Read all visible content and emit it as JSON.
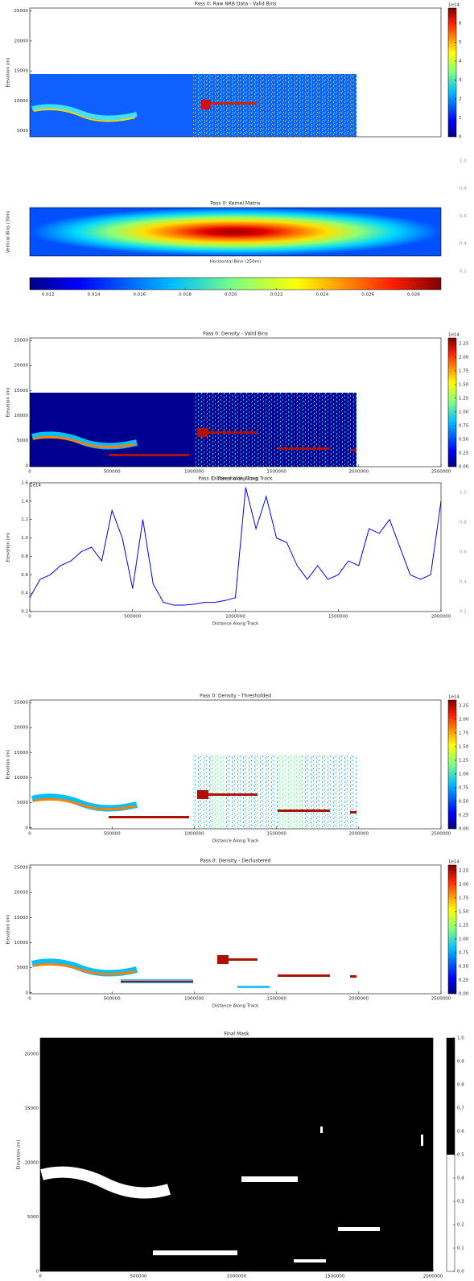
{
  "chart_data": [
    {
      "type": "heatmap",
      "title": "Pass 0: Raw NRB Data - Valid Bins",
      "ylabel": "Elevation (m)",
      "xlim": [
        0,
        2500000
      ],
      "ylim": [
        4000,
        25500
      ],
      "yticks": [
        5000,
        10000,
        15000,
        20000,
        25000
      ],
      "colorbar": {
        "orientation": "vertical",
        "colormap": "jet",
        "clim": [
          0,
          6.8
        ],
        "ticks": [
          0,
          1,
          2,
          3,
          4,
          5,
          6
        ],
        "offset_text": "1e14"
      }
    },
    {
      "type": "heatmap",
      "title": "Pass 0: Kernel Matrix",
      "ylabel": "Vertical Bins (30m)",
      "xlabel": "Horizontal Bins (250m)",
      "colorbar": {
        "orientation": "horizontal",
        "colormap": "jet",
        "clim": [
          0.0112,
          0.0292
        ],
        "ticks": [
          0.012,
          0.014,
          0.016,
          0.018,
          {
            "value": 0.02,
            "label": "0.020"
          },
          0.022,
          0.024,
          0.026,
          0.028
        ]
      },
      "side_lim": [
        0,
        1
      ],
      "side_ticks": [
        {
          "value": 1,
          "label": "1.0"
        },
        0.8,
        0.6,
        0.4,
        0.2
      ]
    },
    {
      "type": "heatmap",
      "title": "Pass 0: Density - Valid Bins",
      "ylabel": "Elevation (m)",
      "xlabel": "Distance Along Track",
      "xlim": [
        0,
        2500000
      ],
      "xticks": [
        0,
        500000,
        1000000,
        1500000,
        2000000,
        2500000
      ],
      "ylim": [
        -200,
        25500
      ],
      "yticks": [
        0,
        5000,
        10000,
        15000,
        20000,
        25000
      ],
      "colorbar": {
        "orientation": "vertical",
        "colormap": "jet",
        "clim": [
          0,
          2.35
        ],
        "offset_text": "1e14",
        "ticks": [
          {
            "value": 0,
            "label": "0.00"
          },
          0.25,
          {
            "value": 0.5,
            "label": "0.50"
          },
          0.75,
          {
            "value": 1,
            "label": "1.00"
          },
          1.25,
          {
            "value": 1.5,
            "label": "1.50"
          },
          1.75,
          {
            "value": 2,
            "label": "2.00"
          },
          2.25
        ]
      }
    },
    {
      "type": "line",
      "title": "Pass 0: Thresholds Along Track",
      "ylabel": "Elevation (m)",
      "xlabel": "Distance Along Track",
      "offset_text": "1e14",
      "color": "#0000ff",
      "xlim": [
        0,
        2000000
      ],
      "xticks": [
        0,
        500000,
        1000000,
        1500000,
        2000000
      ],
      "ylim": [
        0.2,
        1.6
      ],
      "yticks": [
        0.2,
        0.4,
        0.6,
        0.8,
        {
          "value": 1,
          "label": "1.0"
        },
        1.2,
        1.4,
        1.6
      ],
      "x": [
        0,
        50000,
        100000,
        150000,
        200000,
        250000,
        300000,
        350000,
        400000,
        450000,
        500000,
        550000,
        600000,
        650000,
        700000,
        750000,
        800000,
        850000,
        900000,
        950000,
        1000000,
        1050000,
        1100000,
        1150000,
        1200000,
        1250000,
        1300000,
        1350000,
        1400000,
        1450000,
        1500000,
        1550000,
        1600000,
        1650000,
        1700000,
        1750000,
        1800000,
        1850000,
        1900000,
        1950000,
        2000000
      ],
      "values": [
        0.35,
        0.55,
        0.6,
        0.7,
        0.75,
        0.85,
        0.9,
        0.75,
        1.3,
        1.0,
        0.45,
        1.2,
        0.5,
        0.3,
        0.27,
        0.27,
        0.28,
        0.3,
        0.3,
        0.32,
        0.35,
        1.55,
        1.1,
        1.45,
        1.0,
        0.95,
        0.7,
        0.55,
        0.7,
        0.55,
        0.6,
        0.75,
        0.7,
        1.1,
        1.05,
        1.2,
        0.9,
        0.6,
        0.55,
        0.6,
        1.4
      ],
      "side_lim": [
        0,
        1
      ],
      "side_ticks": [
        {
          "value": 1,
          "label": "1.0"
        },
        0.8,
        0.6,
        0.4,
        0.2
      ]
    },
    {
      "type": "heatmap",
      "title": "Pass 0: Density - Thresholded",
      "ylabel": "Elevation (m)",
      "xlabel": "Distance Along Track",
      "xlim": [
        0,
        2500000
      ],
      "xticks": [
        0,
        500000,
        1000000,
        1500000,
        2000000,
        2500000
      ],
      "ylim": [
        -200,
        25500
      ],
      "yticks": [
        0,
        5000,
        10000,
        15000,
        20000,
        25000
      ],
      "colorbar": {
        "orientation": "vertical",
        "colormap": "jet",
        "clim": [
          0,
          2.35
        ],
        "offset_text": "1e14",
        "ticks": [
          {
            "value": 0,
            "label": "0.00"
          },
          0.25,
          {
            "value": 0.5,
            "label": "0.50"
          },
          0.75,
          {
            "value": 1,
            "label": "1.00"
          },
          1.25,
          {
            "value": 1.5,
            "label": "1.50"
          },
          1.75,
          {
            "value": 2,
            "label": "2.00"
          },
          2.25
        ]
      }
    },
    {
      "type": "heatmap",
      "title": "Pass 0: Density - Declustered",
      "ylabel": "Elevation (m)",
      "xlabel": "Distance Along Track",
      "xlim": [
        0,
        2500000
      ],
      "xticks": [
        0,
        500000,
        1000000,
        1500000,
        2000000,
        2500000
      ],
      "ylim": [
        -200,
        25500
      ],
      "yticks": [
        0,
        5000,
        10000,
        15000,
        20000,
        25000
      ],
      "colorbar": {
        "orientation": "vertical",
        "colormap": "jet",
        "clim": [
          0,
          2.35
        ],
        "offset_text": "1e14",
        "ticks": [
          {
            "value": 0,
            "label": "0.00"
          },
          0.25,
          {
            "value": 0.5,
            "label": "0.50"
          },
          0.75,
          {
            "value": 1,
            "label": "1.00"
          },
          1.25,
          {
            "value": 1.5,
            "label": "1.50"
          },
          1.75,
          {
            "value": 2,
            "label": "2.00"
          },
          2.25
        ]
      }
    },
    {
      "type": "heatmap",
      "title": "Final Mask",
      "ylabel": "Elevation (m)",
      "xlabel": "Distance Along Track",
      "xlim": [
        0,
        2000000
      ],
      "xticks": [
        0,
        500000,
        1000000,
        1500000,
        2000000
      ],
      "ylim": [
        0,
        21500
      ],
      "yticks": [
        0,
        5000,
        10000,
        15000,
        20000
      ],
      "colorbar": {
        "orientation": "vertical",
        "colormap": "binary",
        "clim": [
          0,
          1
        ],
        "ticks": [
          {
            "value": 0,
            "label": "0.0"
          },
          0.1,
          0.2,
          0.3,
          0.4,
          0.5,
          0.6,
          0.7,
          0.8,
          0.9,
          {
            "value": 1,
            "label": "1.0"
          }
        ]
      }
    }
  ]
}
